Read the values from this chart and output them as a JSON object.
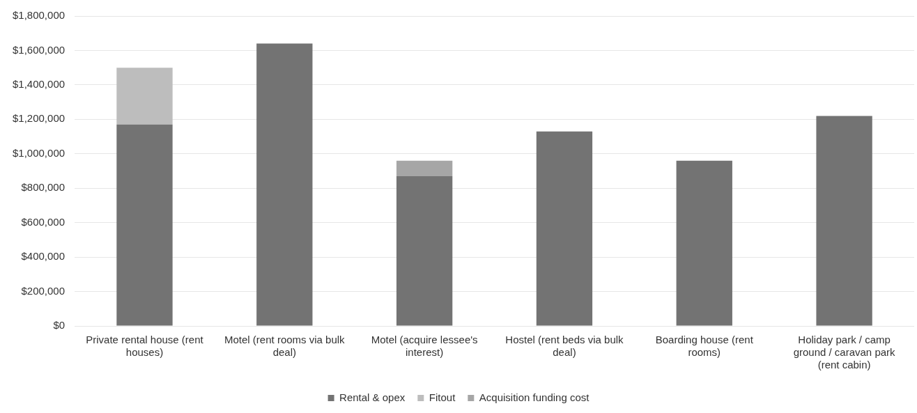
{
  "chart_data": {
    "type": "bar",
    "stacked": true,
    "categories": [
      "Private rental house (rent houses)",
      "Motel (rent rooms via bulk deal)",
      "Motel (acquire lessee's interest)",
      "Hostel (rent beds via bulk deal)",
      "Boarding house (rent rooms)",
      "Holiday park / camp ground / caravan park (rent cabin)"
    ],
    "series": [
      {
        "name": "Rental & opex",
        "color": "#737373",
        "values": [
          1170000,
          1640000,
          870000,
          1130000,
          960000,
          1220000
        ]
      },
      {
        "name": "Fitout",
        "color": "#bdbdbd",
        "values": [
          330000,
          null,
          null,
          null,
          null,
          null
        ]
      },
      {
        "name": "Acquisition funding cost",
        "color": "#a6a6a6",
        "values": [
          null,
          null,
          90000,
          null,
          null,
          null
        ]
      }
    ],
    "ylim": [
      0,
      1800000
    ],
    "yticks": [
      {
        "value": 0,
        "label": "$0"
      },
      {
        "value": 200000,
        "label": "$200,000"
      },
      {
        "value": 400000,
        "label": "$400,000"
      },
      {
        "value": 600000,
        "label": "$600,000"
      },
      {
        "value": 800000,
        "label": "$800,000"
      },
      {
        "value": 1000000,
        "label": "$1,000,000"
      },
      {
        "value": 1200000,
        "label": "$1,200,000"
      },
      {
        "value": 1400000,
        "label": "$1,400,000"
      },
      {
        "value": 1600000,
        "label": "$1,600,000"
      },
      {
        "value": 1800000,
        "label": "$1,800,000"
      }
    ],
    "grid": "y",
    "legend": "bottom"
  }
}
